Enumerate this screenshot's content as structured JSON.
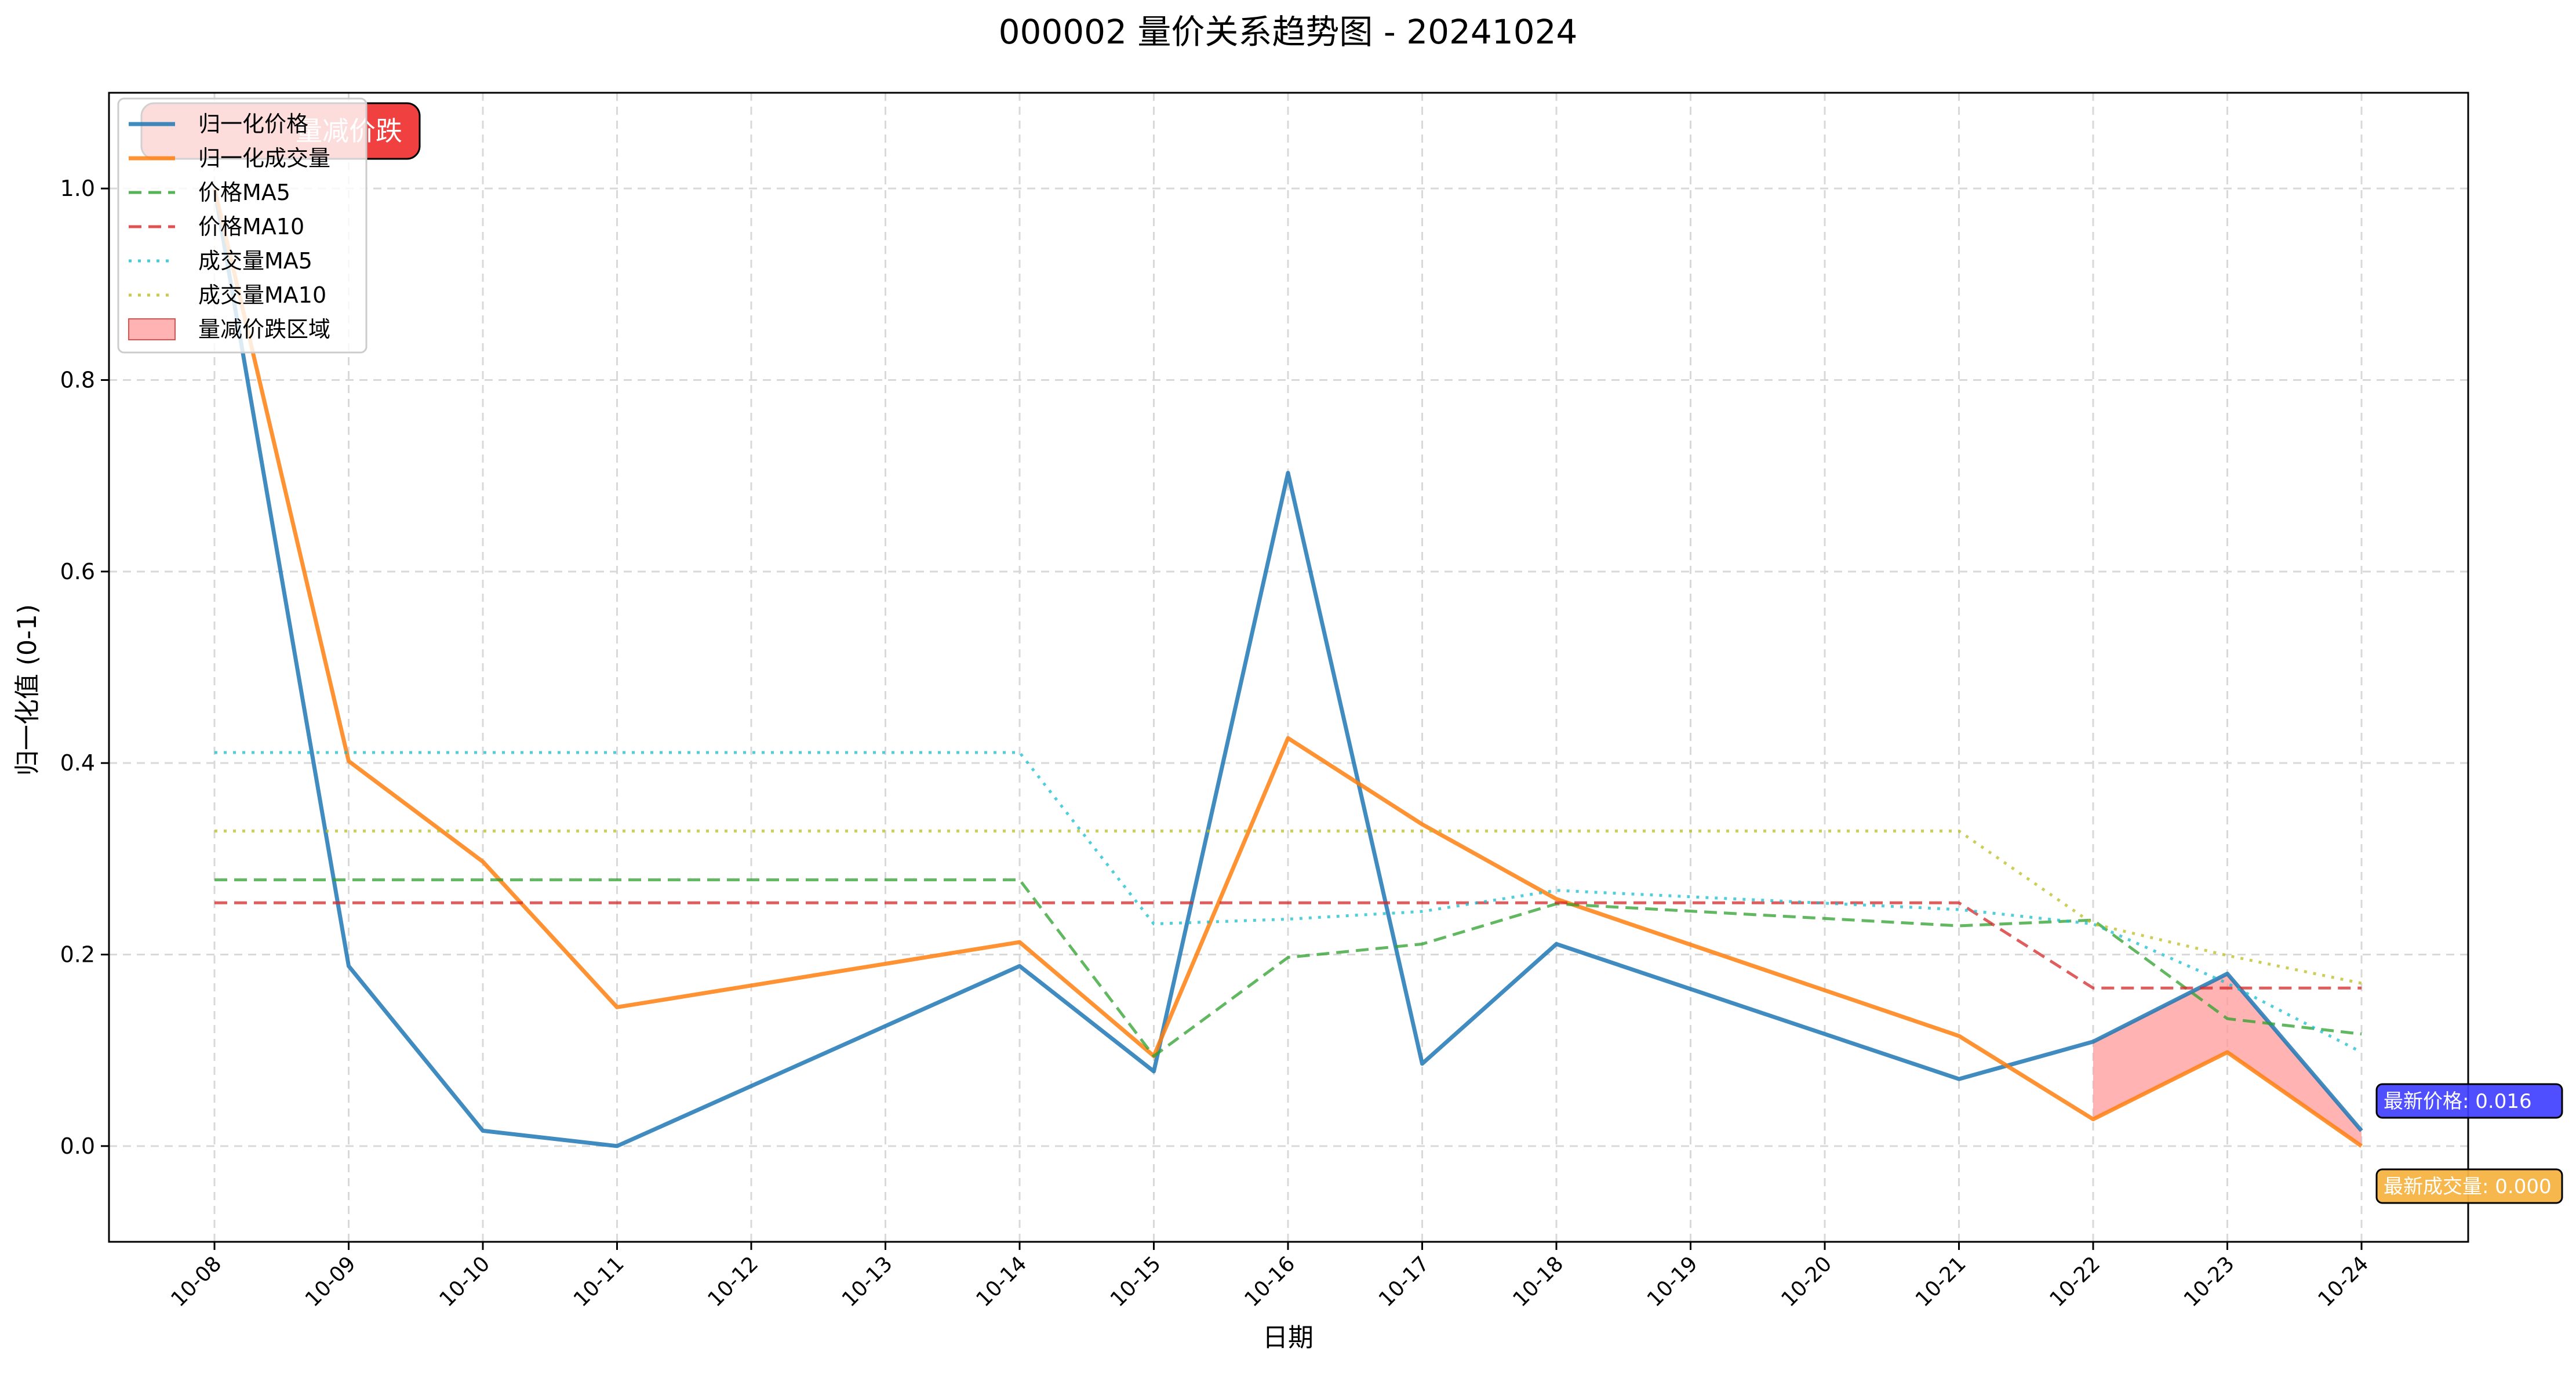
{
  "chart_data": {
    "type": "line",
    "title": "000002 量价关系趋势图 - 20241024",
    "xlabel": "日期",
    "ylabel": "归一化值 (0-1)",
    "ylim": [
      -0.1,
      1.1
    ],
    "yticks": [
      0.0,
      0.2,
      0.4,
      0.6,
      0.8,
      1.0
    ],
    "ytick_labels": [
      "0.0",
      "0.2",
      "0.4",
      "0.6",
      "0.8",
      "1.0"
    ],
    "categories": [
      "10-08",
      "10-09",
      "10-10",
      "10-11",
      "10-12",
      "10-13",
      "10-14",
      "10-15",
      "10-16",
      "10-17",
      "10-18",
      "10-19",
      "10-20",
      "10-21",
      "10-22",
      "10-23",
      "10-24"
    ],
    "grid": true,
    "legend_position": "top-left",
    "series": [
      {
        "name": "归一化价格",
        "style": "solid",
        "color": "#1f77b4",
        "points": [
          [
            0,
            1.0
          ],
          [
            1,
            0.188
          ],
          [
            2,
            0.016
          ],
          [
            3,
            0.0
          ],
          [
            6,
            0.188
          ],
          [
            7,
            0.078
          ],
          [
            8,
            0.703
          ],
          [
            9,
            0.086
          ],
          [
            10,
            0.211
          ],
          [
            13,
            0.07
          ],
          [
            14,
            0.109
          ],
          [
            15,
            0.18
          ],
          [
            16,
            0.016
          ]
        ]
      },
      {
        "name": "归一化成交量",
        "style": "solid",
        "color": "#ff7f0e",
        "points": [
          [
            0,
            1.0
          ],
          [
            1,
            0.402
          ],
          [
            2,
            0.297
          ],
          [
            3,
            0.145
          ],
          [
            6,
            0.213
          ],
          [
            7,
            0.094
          ],
          [
            8,
            0.426
          ],
          [
            9,
            0.336
          ],
          [
            10,
            0.258
          ],
          [
            13,
            0.115
          ],
          [
            14,
            0.028
          ],
          [
            15,
            0.098
          ],
          [
            16,
            0.0
          ]
        ]
      },
      {
        "name": "价格MA5",
        "style": "dashed",
        "color": "#2ca02c",
        "points": [
          [
            0,
            0.278
          ],
          [
            6,
            0.278
          ],
          [
            7,
            0.094
          ],
          [
            8,
            0.197
          ],
          [
            9,
            0.211
          ],
          [
            10,
            0.253
          ],
          [
            13,
            0.23
          ],
          [
            14,
            0.236
          ],
          [
            15,
            0.133
          ],
          [
            16,
            0.117
          ]
        ]
      },
      {
        "name": "价格MA10",
        "style": "dashed",
        "color": "#d62728",
        "points": [
          [
            0,
            0.254
          ],
          [
            13,
            0.254
          ],
          [
            14,
            0.165
          ],
          [
            16,
            0.165
          ]
        ]
      },
      {
        "name": "成交量MA5",
        "style": "dotted",
        "color": "#17becf",
        "points": [
          [
            0,
            0.411
          ],
          [
            6,
            0.411
          ],
          [
            7,
            0.232
          ],
          [
            8,
            0.237
          ],
          [
            9,
            0.245
          ],
          [
            10,
            0.267
          ],
          [
            13,
            0.247
          ],
          [
            14,
            0.232
          ],
          [
            15,
            0.17
          ],
          [
            16,
            0.098
          ]
        ]
      },
      {
        "name": "成交量MA10",
        "style": "dotted",
        "color": "#bcbd22",
        "points": [
          [
            0,
            0.329
          ],
          [
            13,
            0.329
          ],
          [
            14,
            0.232
          ],
          [
            15,
            0.199
          ],
          [
            16,
            0.17
          ]
        ]
      }
    ],
    "fill_region": {
      "name": "量减价跌区域",
      "color": "#ff9999",
      "x_range": [
        14,
        16
      ]
    },
    "annotations": [
      {
        "text": "量减价跌",
        "box_color": "#f04040",
        "text_color": "#ffffff"
      },
      {
        "text": "最新价格: 0.016",
        "box_color": "#4040ff",
        "text_color": "#ffffff",
        "value": 0.016
      },
      {
        "text": "最新成交量: 0.000",
        "box_color": "#f5b342",
        "text_color": "#ffffff",
        "value": 0.0
      }
    ]
  }
}
